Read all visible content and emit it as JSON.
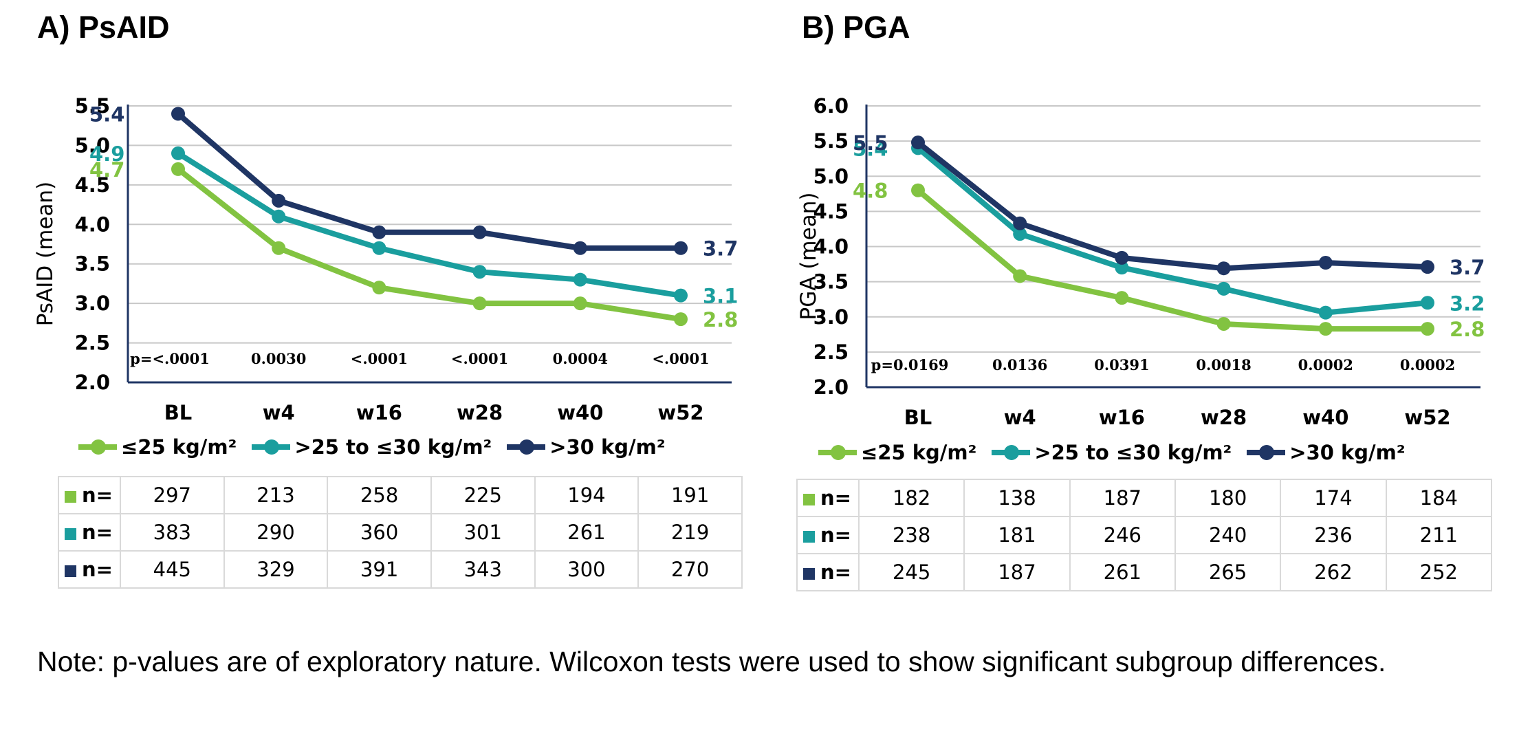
{
  "colors": {
    "le25": "#82c341",
    "mid": "#1a9e9e",
    "gt30": "#1f3564"
  },
  "legend": [
    "≤25 kg/m²",
    ">25 to ≤30  kg/m²",
    ">30  kg/m²"
  ],
  "panels": [
    {
      "title": "A) PsAID",
      "row_label": "n=",
      "n_table": [
        [
          297,
          213,
          258,
          225,
          194,
          191
        ],
        [
          383,
          290,
          360,
          301,
          261,
          219
        ],
        [
          445,
          329,
          391,
          343,
          300,
          270
        ]
      ],
      "p_values": [
        "p=<.0001",
        "0.0030",
        "<.0001",
        "<.0001",
        "0.0004",
        "<.0001"
      ]
    },
    {
      "title": "B) PGA",
      "row_label": "n=",
      "n_table": [
        [
          182,
          138,
          187,
          180,
          174,
          184
        ],
        [
          238,
          181,
          246,
          240,
          236,
          211
        ],
        [
          245,
          187,
          261,
          265,
          262,
          252
        ]
      ],
      "p_values": [
        "p=0.0169",
        "0.0136",
        "0.0391",
        "0.0018",
        "0.0002",
        "0.0002"
      ]
    }
  ],
  "chart_data": [
    {
      "type": "line",
      "categories": [
        "BL",
        "w4",
        "w16",
        "w28",
        "w40",
        "w52"
      ],
      "ylabel": "PsAID (mean)",
      "ylim": [
        2.0,
        5.5
      ],
      "yticks": [
        "2.0",
        "2.5",
        "3.0",
        "3.5",
        "4.0",
        "4.5",
        "5.0",
        "5.5"
      ],
      "grid": true,
      "legend_position": "bottom",
      "series": [
        {
          "name": "≤25 kg/m²",
          "values": [
            4.7,
            3.7,
            3.2,
            3.0,
            3.0,
            2.8
          ],
          "start_label": "4.7",
          "end_label": "2.8"
        },
        {
          "name": ">25 to ≤30  kg/m²",
          "values": [
            4.9,
            4.1,
            3.7,
            3.4,
            3.3,
            3.1
          ],
          "start_label": "4.9",
          "end_label": "3.1"
        },
        {
          "name": ">30  kg/m²",
          "values": [
            5.4,
            4.3,
            3.9,
            3.9,
            3.7,
            3.7
          ],
          "start_label": "5.4",
          "end_label": "3.7"
        }
      ]
    },
    {
      "type": "line",
      "categories": [
        "BL",
        "w4",
        "w16",
        "w28",
        "w40",
        "w52"
      ],
      "ylabel": "PGA (mean)",
      "ylim": [
        2.0,
        6.0
      ],
      "yticks": [
        "2.0",
        "2.5",
        "3.0",
        "3.5",
        "4.0",
        "4.5",
        "5.0",
        "5.5",
        "6.0"
      ],
      "grid": true,
      "legend_position": "bottom",
      "series": [
        {
          "name": "≤25 kg/m²",
          "values": [
            4.8,
            3.58,
            3.27,
            2.9,
            2.83,
            2.83
          ],
          "start_label": "4.8",
          "end_label": "2.8"
        },
        {
          "name": ">25 to ≤30  kg/m²",
          "values": [
            5.4,
            4.18,
            3.7,
            3.4,
            3.06,
            3.2
          ],
          "start_label": "5.4",
          "end_label": "3.2"
        },
        {
          "name": ">30  kg/m²",
          "values": [
            5.48,
            4.33,
            3.84,
            3.69,
            3.77,
            3.71
          ],
          "start_label": "5.5",
          "end_label": "3.7"
        }
      ]
    }
  ],
  "note": "Note: p-values are of exploratory nature. Wilcoxon tests were used to show significant subgroup differences."
}
